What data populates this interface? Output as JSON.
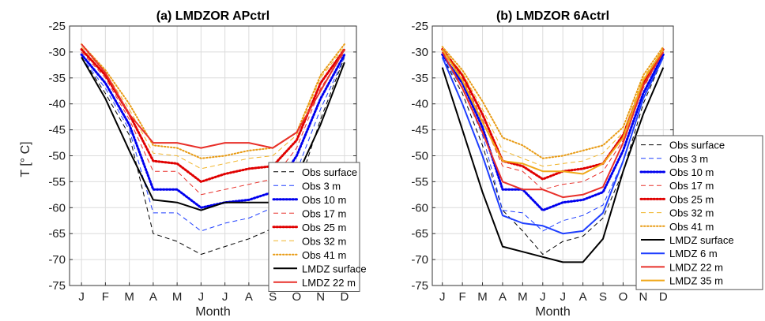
{
  "figure": {
    "ylabel": "T [° C]"
  },
  "chart_data": [
    {
      "type": "line",
      "title": "(a) LMDZOR APctrl",
      "xlabel": "Month",
      "ylabel": "T [° C]",
      "categories": [
        "J",
        "F",
        "M",
        "A",
        "M",
        "J",
        "J",
        "A",
        "S",
        "O",
        "N",
        "D"
      ],
      "ylim": [
        -75,
        -25
      ],
      "yticks": [
        -75,
        -70,
        -65,
        -60,
        -55,
        -50,
        -45,
        -40,
        -35,
        -30,
        -25
      ],
      "grid": true,
      "legend_position": "lower-right",
      "series": [
        {
          "name": "Obs surface",
          "color": "#000000",
          "style": "dashed",
          "width": 1,
          "values": [
            -31,
            -38,
            -46,
            -65,
            -66.5,
            -69,
            -67.5,
            -66,
            -64,
            -57,
            -43,
            -31
          ]
        },
        {
          "name": "Obs 3 m",
          "color": "#1f3fff",
          "style": "dashed",
          "width": 1,
          "values": [
            -31,
            -37,
            -45,
            -61,
            -61,
            -64.5,
            -63,
            -62,
            -60,
            -53,
            -41,
            -31
          ]
        },
        {
          "name": "Obs 10 m",
          "color": "#0000ee",
          "style": "dotted",
          "width": 3,
          "values": [
            -30.5,
            -36,
            -44,
            -56.5,
            -56.5,
            -60,
            -59,
            -58.5,
            -57,
            -50,
            -39,
            -30.5
          ]
        },
        {
          "name": "Obs 17 m",
          "color": "#e8302a",
          "style": "dashed",
          "width": 1,
          "values": [
            -30,
            -35,
            -43,
            -53,
            -53,
            -57.5,
            -56.5,
            -55.5,
            -54.5,
            -48.5,
            -37,
            -30
          ]
        },
        {
          "name": "Obs 25 m",
          "color": "#e00000",
          "style": "dotted",
          "width": 3,
          "values": [
            -29.5,
            -34.5,
            -42,
            -51,
            -51.5,
            -55,
            -53.5,
            -52.5,
            -52,
            -47,
            -36,
            -29.5
          ]
        },
        {
          "name": "Obs 32 m",
          "color": "#f0b429",
          "style": "dashed",
          "width": 1,
          "values": [
            -29,
            -34,
            -41,
            -49.5,
            -50,
            -52.5,
            -51.5,
            -50.5,
            -50,
            -46,
            -35,
            -29
          ]
        },
        {
          "name": "Obs 41 m",
          "color": "#e89a12",
          "style": "dotted",
          "width": 2,
          "values": [
            -28.5,
            -33.5,
            -40,
            -48,
            -48.5,
            -50.5,
            -50,
            -49,
            -48.5,
            -45.5,
            -34.5,
            -28.5
          ]
        },
        {
          "name": "LMDZ surface",
          "color": "#000000",
          "style": "solid",
          "width": 2,
          "values": [
            -31,
            -39,
            -49,
            -58.5,
            -59,
            -60.5,
            -59,
            -59,
            -59,
            -54,
            -44,
            -32
          ]
        },
        {
          "name": "LMDZ 22 m",
          "color": "#e8302a",
          "style": "solid",
          "width": 2,
          "values": [
            -28.5,
            -34,
            -42,
            -47.5,
            -47.5,
            -48.5,
            -47.5,
            -47.5,
            -48.5,
            -45.5,
            -37.5,
            -29.5
          ]
        }
      ]
    },
    {
      "type": "line",
      "title": "(b) LMDZOR 6Actrl",
      "xlabel": "Month",
      "ylabel": "",
      "categories": [
        "J",
        "F",
        "M",
        "A",
        "M",
        "J",
        "J",
        "A",
        "S",
        "O",
        "N",
        "D"
      ],
      "ylim": [
        -75,
        -25
      ],
      "yticks": [
        -75,
        -70,
        -65,
        -60,
        -55,
        -50,
        -45,
        -40,
        -35,
        -30,
        -25
      ],
      "grid": true,
      "legend_position": "right",
      "series": [
        {
          "name": "Obs surface",
          "color": "#000000",
          "style": "dashed",
          "width": 1,
          "values": [
            -31,
            -38,
            -48,
            -60.5,
            -64.5,
            -69,
            -66.5,
            -65.5,
            -62,
            -53,
            -40,
            -31
          ]
        },
        {
          "name": "Obs 3 m",
          "color": "#1f3fff",
          "style": "dashed",
          "width": 1,
          "values": [
            -31,
            -37,
            -46,
            -60.5,
            -61,
            -64.5,
            -62.5,
            -61.5,
            -59.5,
            -51,
            -39,
            -31
          ]
        },
        {
          "name": "Obs 10 m",
          "color": "#0000ee",
          "style": "dotted",
          "width": 3,
          "values": [
            -30.5,
            -36,
            -44.5,
            -56.5,
            -56.5,
            -60.5,
            -59,
            -58.5,
            -57,
            -49,
            -38,
            -30.5
          ]
        },
        {
          "name": "Obs 17 m",
          "color": "#e8302a",
          "style": "dashed",
          "width": 1,
          "values": [
            -30,
            -35,
            -43,
            -52,
            -53,
            -56.5,
            -55.5,
            -55,
            -53,
            -47,
            -37,
            -30
          ]
        },
        {
          "name": "Obs 25 m",
          "color": "#e00000",
          "style": "dotted",
          "width": 3,
          "values": [
            -29.5,
            -34.5,
            -42,
            -51,
            -52,
            -54.5,
            -53,
            -52.5,
            -51.5,
            -46,
            -36,
            -29.5
          ]
        },
        {
          "name": "Obs 32 m",
          "color": "#f0b429",
          "style": "dashed",
          "width": 1,
          "values": [
            -29.5,
            -34,
            -41,
            -49,
            -50.5,
            -52,
            -51.5,
            -51,
            -49.5,
            -45.5,
            -35,
            -29.5
          ]
        },
        {
          "name": "Obs 41 m",
          "color": "#e89a12",
          "style": "dotted",
          "width": 2,
          "values": [
            -29,
            -33.5,
            -39.5,
            -46.5,
            -48,
            -50.5,
            -50,
            -49,
            -48,
            -44.5,
            -34.5,
            -29
          ]
        },
        {
          "name": "LMDZ surface",
          "color": "#000000",
          "style": "solid",
          "width": 2,
          "values": [
            -33,
            -45,
            -57,
            -67.5,
            -68.5,
            -69.5,
            -70.5,
            -70.5,
            -66,
            -53,
            -42,
            -33
          ]
        },
        {
          "name": "LMDZ 6 m",
          "color": "#1f3fff",
          "style": "solid",
          "width": 2,
          "values": [
            -31,
            -40,
            -50,
            -61.5,
            -63,
            -63.5,
            -65,
            -64.5,
            -61,
            -51,
            -39,
            -31
          ]
        },
        {
          "name": "LMDZ 22 m",
          "color": "#e8302a",
          "style": "solid",
          "width": 2,
          "values": [
            -30,
            -37,
            -45.5,
            -55,
            -56.5,
            -56.5,
            -58,
            -57.5,
            -56,
            -47.5,
            -36.5,
            -30
          ]
        },
        {
          "name": "LMDZ 35 m",
          "color": "#f0a81a",
          "style": "solid",
          "width": 2,
          "values": [
            -29.5,
            -35.5,
            -43.5,
            -51,
            -51.5,
            -53,
            -53,
            -53.5,
            -51.5,
            -46.5,
            -35.5,
            -29.5
          ]
        }
      ]
    }
  ]
}
